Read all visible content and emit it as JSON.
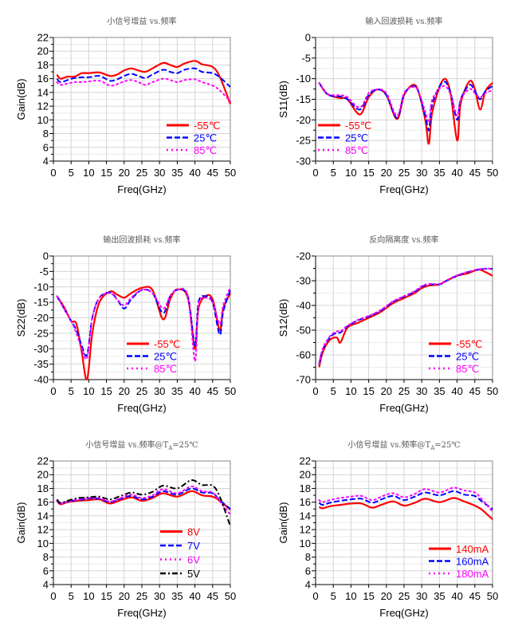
{
  "chart_data": [
    {
      "type": "line",
      "title": "小信号增益 vs.频率",
      "xlabel": "Freq(GHz)",
      "ylabel": "Gain(dB)",
      "xlim": [
        0,
        50
      ],
      "ylim": [
        4,
        22
      ],
      "ystep": 2,
      "xstep": 5,
      "legend": "bottom-right",
      "x": [
        1,
        2,
        4,
        6,
        8,
        10,
        13,
        16,
        18,
        20,
        22,
        24,
        26,
        28,
        31,
        33,
        35,
        37,
        40,
        42,
        45,
        47,
        50
      ],
      "series": [
        {
          "name": "-55℃",
          "color": "#ff0000",
          "style": "solid",
          "values": [
            16.6,
            16.0,
            16.3,
            16.3,
            16.8,
            16.8,
            16.9,
            16.4,
            16.6,
            17.2,
            17.5,
            17.2,
            17.0,
            17.5,
            18.3,
            18.0,
            17.7,
            18.2,
            18.6,
            18.1,
            17.7,
            16.3,
            12.3
          ]
        },
        {
          "name": "25℃",
          "color": "#0000ff",
          "style": "dash",
          "values": [
            16.0,
            15.5,
            15.8,
            16.1,
            16.2,
            16.2,
            16.4,
            15.7,
            15.9,
            16.4,
            16.7,
            16.4,
            16.1,
            16.6,
            17.3,
            17.0,
            16.8,
            17.3,
            17.5,
            17.0,
            16.8,
            16.2,
            14.8
          ]
        },
        {
          "name": "85℃",
          "color": "#ff00ff",
          "style": "dot",
          "values": [
            15.5,
            15.1,
            15.3,
            15.5,
            15.5,
            15.6,
            15.7,
            15.0,
            15.2,
            15.6,
            15.8,
            15.5,
            15.1,
            15.5,
            16.0,
            15.8,
            15.5,
            15.8,
            15.9,
            15.5,
            15.0,
            14.3,
            12.7
          ]
        }
      ]
    },
    {
      "type": "line",
      "title": "输入回波损耗 vs.频率",
      "xlabel": "Freq(GHz)",
      "ylabel": "S11(dB)",
      "xlim": [
        0,
        50
      ],
      "ylim": [
        -30,
        0
      ],
      "ystep": 5,
      "xstep": 5,
      "legend": "bottom-left",
      "x": [
        1,
        3,
        5,
        7,
        9,
        12.5,
        15,
        17.5,
        20,
        23,
        25,
        27.5,
        29,
        31,
        32,
        33,
        36,
        38,
        40,
        41,
        43.5,
        45,
        46.5,
        48,
        50
      ],
      "series": [
        {
          "name": "-55℃",
          "color": "#ff0000",
          "style": "solid",
          "values": [
            -11,
            -13.5,
            -14.3,
            -14.7,
            -15,
            -18.7,
            -14.5,
            -12.6,
            -14,
            -19.8,
            -14,
            -11.5,
            -13,
            -20,
            -25.8,
            -18,
            -10.3,
            -13,
            -25,
            -16,
            -10.6,
            -12.5,
            -17.5,
            -13,
            -11
          ]
        },
        {
          "name": "25℃",
          "color": "#0000ff",
          "style": "dash",
          "values": [
            -11,
            -13.5,
            -14.3,
            -14.3,
            -15,
            -17.5,
            -14,
            -12.6,
            -14,
            -19.5,
            -13.8,
            -11.8,
            -13,
            -19,
            -22.5,
            -16,
            -10.8,
            -13,
            -20,
            -15,
            -11.5,
            -13,
            -15,
            -13,
            -11.8
          ]
        },
        {
          "name": "85℃",
          "color": "#ff00ff",
          "style": "dot",
          "values": [
            -11,
            -13.5,
            -14,
            -14,
            -14.5,
            -17,
            -13.5,
            -12.6,
            -13.5,
            -19,
            -13.5,
            -12,
            -13,
            -18,
            -20.5,
            -15,
            -11.8,
            -13.5,
            -19,
            -15,
            -12.5,
            -13.5,
            -14.5,
            -13.5,
            -12.8
          ]
        }
      ]
    },
    {
      "type": "line",
      "title": "输出回波损耗 vs.频率",
      "xlabel": "Freq(GHz)",
      "ylabel": "S22(dB)",
      "xlim": [
        0,
        50
      ],
      "ylim": [
        -40,
        0
      ],
      "ystep": 5,
      "xstep": 5,
      "legend": "bottom-center",
      "x": [
        1,
        3,
        5,
        6.5,
        8,
        9.5,
        11,
        13,
        16,
        18,
        20,
        22,
        25,
        28,
        31,
        33,
        35,
        38,
        40,
        41,
        43,
        45,
        47,
        48,
        50
      ],
      "series": [
        {
          "name": "-55℃",
          "color": "#ff0000",
          "style": "solid",
          "values": [
            -13,
            -16.5,
            -21,
            -22,
            -31,
            -40,
            -25,
            -15,
            -11.5,
            -12.5,
            -13.5,
            -12,
            -10.3,
            -11,
            -20.5,
            -14,
            -10.8,
            -13.5,
            -30,
            -17,
            -13,
            -14,
            -24,
            -17,
            -12
          ]
        },
        {
          "name": "25℃",
          "color": "#0000ff",
          "style": "dash",
          "values": [
            -13,
            -17,
            -21,
            -24,
            -29,
            -32,
            -20,
            -13.5,
            -11.8,
            -14,
            -17,
            -14,
            -11,
            -12,
            -18.5,
            -13,
            -11,
            -13,
            -29,
            -15,
            -13,
            -15,
            -25.5,
            -18,
            -11
          ]
        },
        {
          "name": "85℃",
          "color": "#ff00ff",
          "style": "dot",
          "values": [
            -13,
            -17,
            -21,
            -25,
            -30,
            -33,
            -20,
            -13.5,
            -12,
            -14,
            -16,
            -13.5,
            -11,
            -12,
            -17,
            -13,
            -11,
            -13,
            -34,
            -16,
            -13.5,
            -15,
            -22,
            -16,
            -10
          ]
        }
      ]
    },
    {
      "type": "line",
      "title": "反向隔离度 vs.频率",
      "xlabel": "Freq(GHz)",
      "ylabel": "S12(dB)",
      "xlim": [
        0,
        50
      ],
      "ylim": [
        -70,
        -20
      ],
      "ystep": 10,
      "xstep": 5,
      "legend": "bottom-right",
      "x": [
        1,
        2,
        4,
        6,
        7,
        9,
        12,
        15,
        18,
        20,
        22,
        25,
        28,
        30,
        32,
        35,
        37,
        40,
        43,
        46,
        48,
        50
      ],
      "series": [
        {
          "name": "-55℃",
          "color": "#ff0000",
          "style": "solid",
          "values": [
            -65,
            -59,
            -54,
            -53,
            -55,
            -49,
            -47,
            -45,
            -43,
            -41,
            -39,
            -37,
            -35,
            -33,
            -32,
            -31.5,
            -30,
            -28,
            -27,
            -25.5,
            -26.5,
            -28
          ]
        },
        {
          "name": "25℃",
          "color": "#0000ff",
          "style": "dash",
          "values": [
            -64,
            -58,
            -53,
            -51,
            -51,
            -48.5,
            -46,
            -44.5,
            -42.5,
            -40.5,
            -38.5,
            -36.5,
            -34.5,
            -32.5,
            -31.5,
            -31.5,
            -30,
            -28,
            -26.5,
            -25.5,
            -25.2,
            -25.2
          ]
        },
        {
          "name": "85℃",
          "color": "#ff00ff",
          "style": "dot",
          "values": [
            -63.5,
            -57.5,
            -52.5,
            -50.5,
            -50.5,
            -48.2,
            -45.8,
            -44.2,
            -42.2,
            -40.2,
            -38.2,
            -36.2,
            -34.2,
            -32.2,
            -31.3,
            -31.3,
            -29.8,
            -27.8,
            -26.4,
            -25.4,
            -25.1,
            -25.1
          ]
        }
      ]
    },
    {
      "type": "line",
      "title": "小信号增益 vs.频率@T",
      "title_sub": "A",
      "title_tail": "=25℃",
      "xlabel": "Freq(GHz)",
      "ylabel": "Gain(dB)",
      "xlim": [
        0,
        50
      ],
      "ylim": [
        4,
        22
      ],
      "ystep": 2,
      "xstep": 5,
      "legend": "bottom-right",
      "x": [
        1,
        2,
        4,
        7,
        10,
        13,
        16,
        19,
        22,
        25,
        28,
        31,
        35,
        39,
        42,
        45,
        47,
        50
      ],
      "series": [
        {
          "name": "8V",
          "color": "#ff0000",
          "style": "solid",
          "values": [
            16.2,
            15.7,
            16.0,
            16.2,
            16.3,
            16.4,
            15.8,
            16.3,
            16.7,
            16.2,
            16.6,
            17.3,
            16.8,
            17.6,
            17.0,
            16.8,
            16.2,
            14.9
          ]
        },
        {
          "name": "7V",
          "color": "#0000ff",
          "style": "dash",
          "values": [
            16.2,
            15.8,
            16.1,
            16.3,
            16.5,
            16.5,
            16.0,
            16.5,
            16.9,
            16.4,
            16.8,
            17.6,
            17.1,
            18.0,
            17.4,
            17.3,
            16.3,
            15.0
          ]
        },
        {
          "name": "6V",
          "color": "#ff00ff",
          "style": "dot",
          "values": [
            16.2,
            15.8,
            16.1,
            16.4,
            16.6,
            16.6,
            16.1,
            16.6,
            17.1,
            16.6,
            17.0,
            17.9,
            17.3,
            18.3,
            17.6,
            17.4,
            16.1,
            14.2
          ]
        },
        {
          "name": "5V",
          "color": "#000000",
          "style": "dashdot",
          "values": [
            16.4,
            15.9,
            16.2,
            16.6,
            16.7,
            16.8,
            16.4,
            16.9,
            17.4,
            17.1,
            17.5,
            18.4,
            18.0,
            19.2,
            18.5,
            18.4,
            16.8,
            12.5
          ]
        }
      ]
    },
    {
      "type": "line",
      "title": "小信号增益 vs.频率@T",
      "title_sub": "A",
      "title_tail": "=25℃",
      "xlabel": "Freq(GHz)",
      "ylabel": "Gain(dB)",
      "xlim": [
        0,
        50
      ],
      "ylim": [
        4,
        22
      ],
      "ystep": 2,
      "xstep": 5,
      "legend": "bottom-right",
      "x": [
        1,
        2,
        4,
        7,
        10,
        13,
        16,
        19,
        22,
        25,
        28,
        31,
        35,
        39,
        42,
        45,
        47,
        50
      ],
      "series": [
        {
          "name": "140mA",
          "color": "#ff0000",
          "style": "solid",
          "values": [
            15.3,
            15.1,
            15.4,
            15.6,
            15.8,
            15.8,
            15.2,
            15.7,
            16.1,
            15.5,
            15.9,
            16.5,
            16.0,
            16.6,
            16.1,
            15.5,
            14.9,
            13.5
          ]
        },
        {
          "name": "160mA",
          "color": "#0000ff",
          "style": "dash",
          "values": [
            15.9,
            15.6,
            15.9,
            16.2,
            16.4,
            16.5,
            15.9,
            16.5,
            16.9,
            16.3,
            16.8,
            17.4,
            17.0,
            17.6,
            17.1,
            16.9,
            16.1,
            15.0
          ]
        },
        {
          "name": "180mA",
          "color": "#ff00ff",
          "style": "dot",
          "values": [
            16.3,
            16.0,
            16.3,
            16.6,
            16.8,
            16.9,
            16.3,
            16.9,
            17.3,
            16.7,
            17.2,
            17.9,
            17.4,
            18.1,
            17.7,
            17.4,
            16.4,
            14.6
          ]
        }
      ]
    }
  ]
}
